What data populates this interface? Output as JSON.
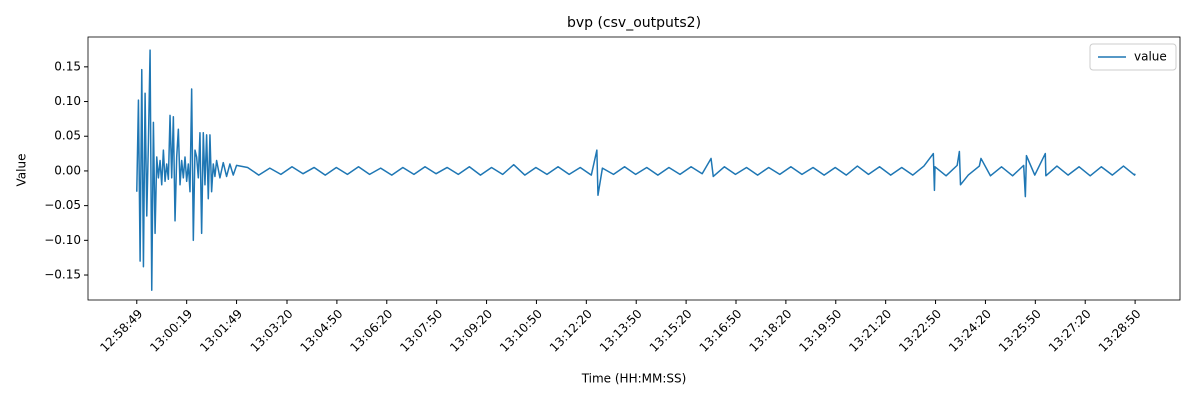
{
  "chart_data": {
    "type": "line",
    "title": "bvp (csv_outputs2)",
    "x_label": "Time (HH:MM:SS)",
    "y_label": "Value",
    "legend": "upper right",
    "grid": false,
    "xlim": [
      "12:57:21",
      "13:30:11"
    ],
    "ylim": [
      -0.186,
      0.193
    ],
    "xticks": [
      "12:58:49",
      "13:00:19",
      "13:01:49",
      "13:03:20",
      "13:04:50",
      "13:06:20",
      "13:07:50",
      "13:09:20",
      "13:10:50",
      "13:12:20",
      "13:13:50",
      "13:15:20",
      "13:16:50",
      "13:18:20",
      "13:19:50",
      "13:21:20",
      "13:22:50",
      "13:24:20",
      "13:25:50",
      "13:27:20",
      "13:28:50"
    ],
    "yticks": [
      {
        "value": -0.15,
        "label": "−0.15"
      },
      {
        "value": -0.1,
        "label": "−0.10"
      },
      {
        "value": -0.05,
        "label": "−0.05"
      },
      {
        "value": 0,
        "label": "0.00"
      },
      {
        "value": 0.05,
        "label": "0.05"
      },
      {
        "value": 0.1,
        "label": "0.10"
      },
      {
        "value": 0.15,
        "label": "0.15"
      }
    ],
    "x": [
      "12:58:49",
      "12:58:52",
      "12:58:55",
      "12:58:58",
      "12:59:01",
      "12:59:04",
      "12:59:07",
      "12:59:10",
      "12:59:13",
      "12:59:16",
      "12:59:19",
      "12:59:22",
      "12:59:25",
      "12:59:28",
      "12:59:31",
      "12:59:34",
      "12:59:37",
      "12:59:40",
      "12:59:43",
      "12:59:46",
      "12:59:49",
      "12:59:52",
      "12:59:55",
      "12:59:58",
      "13:00:01",
      "13:00:04",
      "13:00:07",
      "13:00:10",
      "13:00:13",
      "13:00:16",
      "13:00:19",
      "13:00:22",
      "13:00:25",
      "13:00:28",
      "13:00:31",
      "13:00:34",
      "13:00:37",
      "13:00:40",
      "13:00:43",
      "13:00:46",
      "13:00:49",
      "13:00:52",
      "13:00:55",
      "13:00:58",
      "13:01:01",
      "13:01:04",
      "13:01:07",
      "13:01:10",
      "13:01:13",
      "13:01:19",
      "13:01:25",
      "13:01:31",
      "13:01:37",
      "13:01:43",
      "13:01:49",
      "13:02:09",
      "13:02:29",
      "13:02:49",
      "13:03:09",
      "13:03:29",
      "13:03:49",
      "13:04:09",
      "13:04:29",
      "13:04:49",
      "13:05:09",
      "13:05:29",
      "13:05:49",
      "13:06:09",
      "13:06:29",
      "13:06:49",
      "13:07:09",
      "13:07:29",
      "13:07:49",
      "13:08:09",
      "13:08:29",
      "13:08:49",
      "13:09:09",
      "13:09:29",
      "13:09:49",
      "13:10:09",
      "13:10:29",
      "13:10:49",
      "13:11:09",
      "13:11:29",
      "13:11:49",
      "13:12:09",
      "13:12:29",
      "13:12:39",
      "13:12:41",
      "13:12:49",
      "13:13:09",
      "13:13:29",
      "13:13:49",
      "13:14:09",
      "13:14:29",
      "13:14:49",
      "13:15:09",
      "13:15:29",
      "13:15:49",
      "13:16:05",
      "13:16:09",
      "13:16:29",
      "13:16:49",
      "13:17:09",
      "13:17:29",
      "13:17:49",
      "13:18:09",
      "13:18:29",
      "13:18:49",
      "13:19:09",
      "13:19:29",
      "13:19:49",
      "13:20:09",
      "13:20:29",
      "13:20:49",
      "13:21:09",
      "13:21:29",
      "13:21:49",
      "13:22:09",
      "13:22:29",
      "13:22:46",
      "13:22:48",
      "13:22:49",
      "13:23:09",
      "13:23:29",
      "13:23:33",
      "13:23:35",
      "13:23:49",
      "13:24:09",
      "13:24:12",
      "13:24:29",
      "13:24:49",
      "13:25:09",
      "13:25:29",
      "13:25:32",
      "13:25:34",
      "13:25:49",
      "13:26:08",
      "13:26:09",
      "13:26:29",
      "13:26:49",
      "13:27:09",
      "13:27:29",
      "13:27:49",
      "13:28:09",
      "13:28:29",
      "13:28:49",
      "13:28:50"
    ],
    "series": [
      {
        "name": "value",
        "color": "#1f77b4",
        "values": [
          -0.03,
          0.102,
          -0.13,
          0.146,
          -0.138,
          0.112,
          -0.065,
          0.042,
          0.174,
          -0.172,
          0.07,
          -0.09,
          0.02,
          -0.01,
          0.015,
          -0.02,
          0.03,
          -0.015,
          0.01,
          -0.012,
          0.08,
          -0.01,
          0.078,
          -0.072,
          0.02,
          0.06,
          -0.02,
          0.015,
          -0.01,
          0.02,
          -0.015,
          0.01,
          -0.03,
          0.118,
          -0.1,
          0.03,
          0.02,
          -0.01,
          0.055,
          -0.09,
          0.055,
          -0.02,
          0.052,
          -0.04,
          0.052,
          -0.03,
          0.01,
          -0.008,
          0.015,
          -0.01,
          0.012,
          -0.008,
          0.01,
          -0.006,
          0.008,
          0.005,
          -0.006,
          0.004,
          -0.005,
          0.006,
          -0.004,
          0.005,
          -0.006,
          0.005,
          -0.005,
          0.006,
          -0.005,
          0.004,
          -0.006,
          0.005,
          -0.005,
          0.006,
          -0.004,
          0.005,
          -0.005,
          0.006,
          -0.006,
          0.005,
          -0.005,
          0.009,
          -0.006,
          0.005,
          -0.005,
          0.006,
          -0.005,
          0.005,
          -0.006,
          0.03,
          -0.035,
          0.004,
          -0.005,
          0.006,
          -0.005,
          0.005,
          -0.006,
          0.005,
          -0.005,
          0.006,
          -0.004,
          0.018,
          -0.008,
          0.006,
          -0.005,
          0.005,
          -0.006,
          0.005,
          -0.005,
          0.006,
          -0.005,
          0.005,
          -0.006,
          0.005,
          -0.006,
          0.007,
          -0.005,
          0.006,
          -0.006,
          0.005,
          -0.006,
          0.007,
          0.025,
          -0.028,
          0.006,
          -0.007,
          0.008,
          0.028,
          -0.02,
          -0.006,
          0.007,
          0.018,
          -0.007,
          0.006,
          -0.007,
          0.008,
          -0.037,
          0.022,
          -0.006,
          0.025,
          -0.007,
          0.007,
          -0.006,
          0.006,
          -0.007,
          0.006,
          -0.006,
          0.007,
          -0.006,
          -0.004
        ]
      }
    ]
  }
}
